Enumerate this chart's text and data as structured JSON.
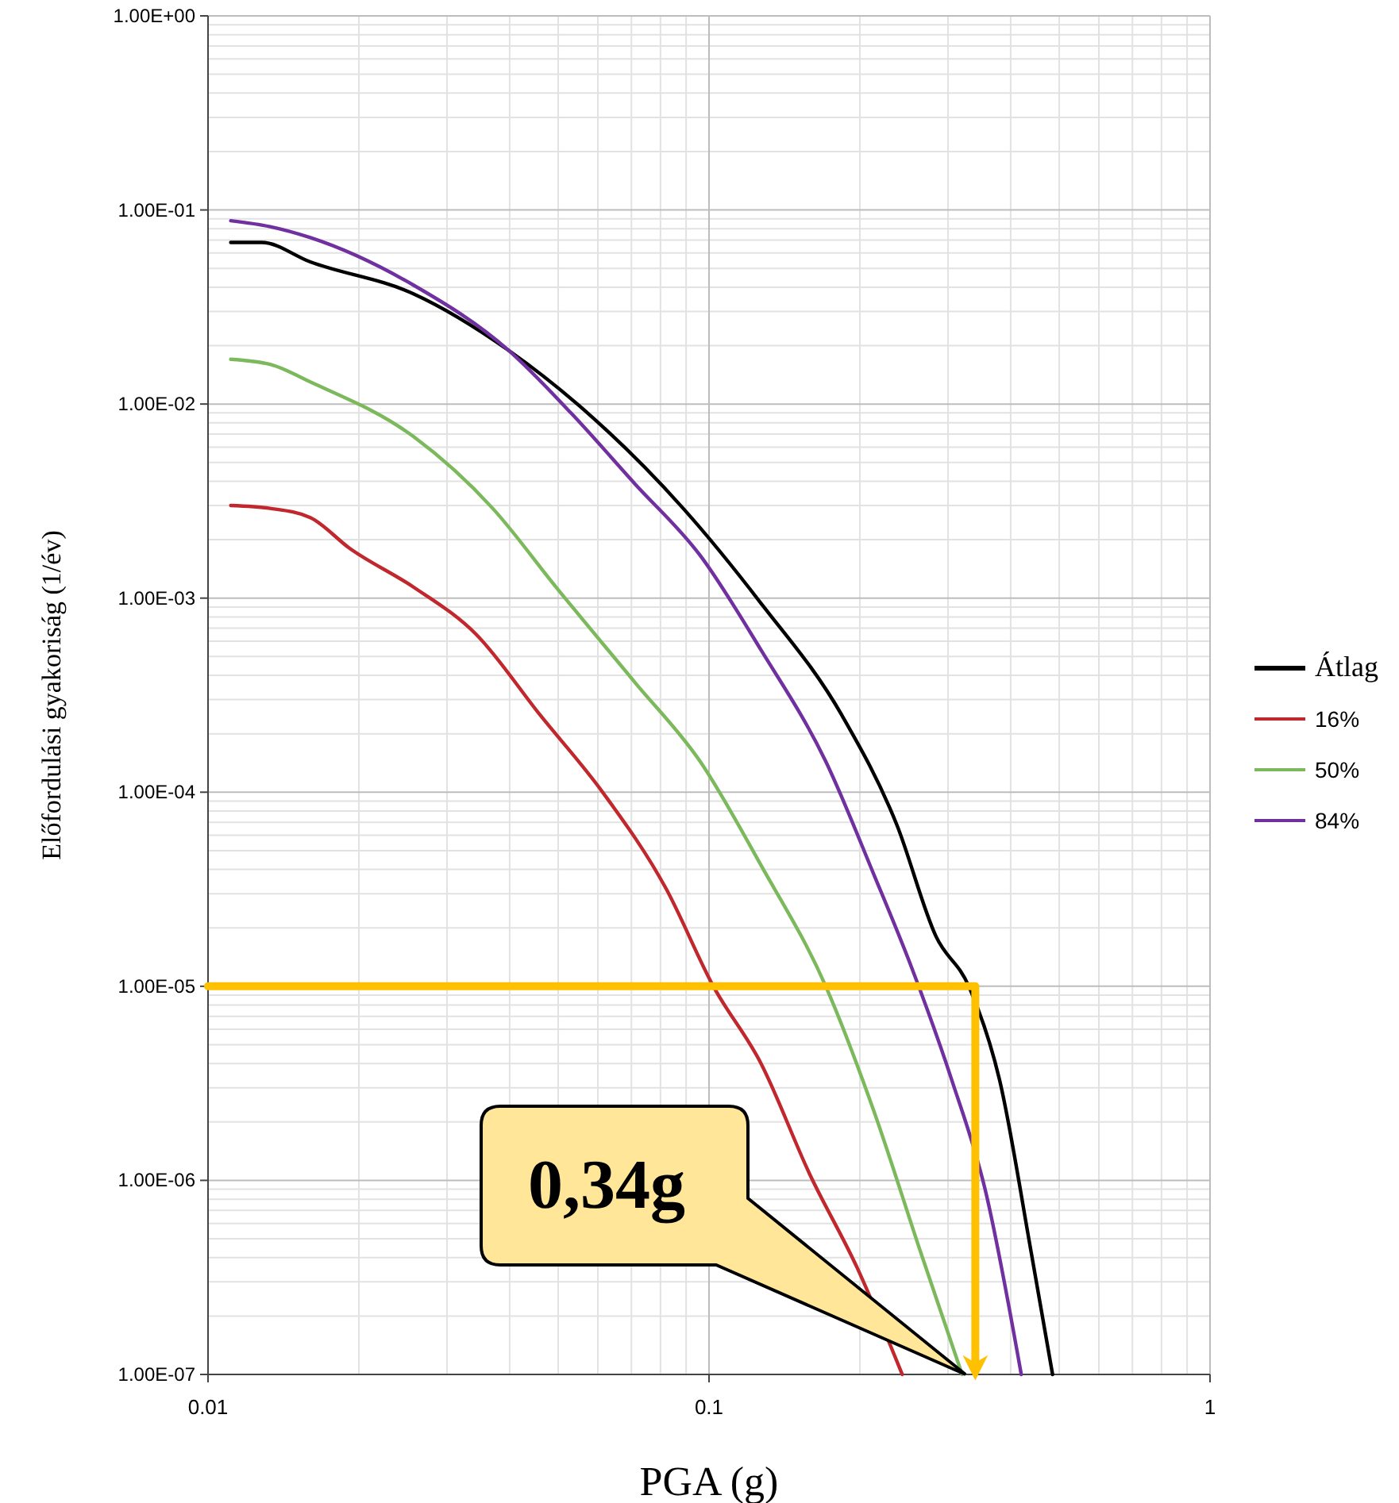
{
  "chart_data": {
    "type": "line",
    "xlabel": "PGA (g)",
    "ylabel": "Előfordulási gyakoriság (1/év)",
    "log": "xy",
    "grid": true,
    "legend": "right",
    "xlim": [
      0.01,
      1
    ],
    "ylim": [
      1e-07,
      1
    ],
    "xticks": [
      0.01,
      0.1,
      1
    ],
    "yticks": [
      {
        "value": 1,
        "label": "1.00E+00"
      },
      {
        "value": 0.1,
        "label": "1.00E-01"
      },
      {
        "value": 0.01,
        "label": "1.00E-02"
      },
      {
        "value": 0.001,
        "label": "1.00E-03"
      },
      {
        "value": 0.0001,
        "label": "1.00E-04"
      },
      {
        "value": 1e-05,
        "label": "1.00E-05"
      },
      {
        "value": 1e-06,
        "label": "1.00E-06"
      },
      {
        "value": 1e-07,
        "label": "1.00E-07"
      }
    ],
    "series": [
      {
        "name": "Átlag",
        "color": "#000000",
        "x": [
          0.0111,
          0.0128,
          0.016,
          0.0257,
          0.0397,
          0.0572,
          0.0888,
          0.127,
          0.184,
          0.237,
          0.284,
          0.33,
          0.38,
          0.44,
          0.485
        ],
        "values": [
          0.068,
          0.068,
          0.054,
          0.037,
          0.019,
          0.009,
          0.0029,
          0.00094,
          0.00025,
          6.8e-05,
          1.8e-05,
          1e-05,
          3.3e-06,
          4.2e-07,
          1e-07
        ]
      },
      {
        "name": "16%",
        "color": "#c0282d",
        "x": [
          0.0111,
          0.0133,
          0.016,
          0.0192,
          0.0257,
          0.0343,
          0.046,
          0.0615,
          0.082,
          0.102,
          0.127,
          0.159,
          0.198,
          0.243
        ],
        "values": [
          0.003,
          0.0029,
          0.0026,
          0.0018,
          0.00114,
          0.00065,
          0.00025,
          9.9e-05,
          3.2e-05,
          1e-05,
          4e-06,
          1.07e-06,
          3.5e-07,
          1e-07
        ]
      },
      {
        "name": "50%",
        "color": "#7cb95c",
        "x": [
          0.0111,
          0.0133,
          0.016,
          0.0257,
          0.037,
          0.0495,
          0.071,
          0.096,
          0.127,
          0.171,
          0.213,
          0.265,
          0.32
        ],
        "values": [
          0.017,
          0.016,
          0.013,
          0.0068,
          0.0029,
          0.00114,
          0.00037,
          0.000144,
          4.2e-05,
          1e-05,
          2.3e-06,
          4.2e-07,
          1e-07
        ]
      },
      {
        "name": "84%",
        "color": "#7030a0",
        "x": [
          0.0111,
          0.0133,
          0.016,
          0.0257,
          0.0397,
          0.053,
          0.071,
          0.096,
          0.127,
          0.171,
          0.213,
          0.254,
          0.305,
          0.356,
          0.42
        ],
        "values": [
          0.088,
          0.082,
          0.072,
          0.041,
          0.019,
          0.009,
          0.0039,
          0.00166,
          0.00054,
          0.000144,
          3.8e-05,
          1.24e-05,
          3.3e-06,
          8.9e-07,
          1e-07
        ]
      },
      {
        "color": "#ffc000",
        "x": [
          0.01,
          0.34,
          0.34
        ],
        "values": [
          1e-05,
          1e-05,
          1.05e-07
        ]
      }
    ],
    "annotations": [
      "0,34g"
    ]
  }
}
